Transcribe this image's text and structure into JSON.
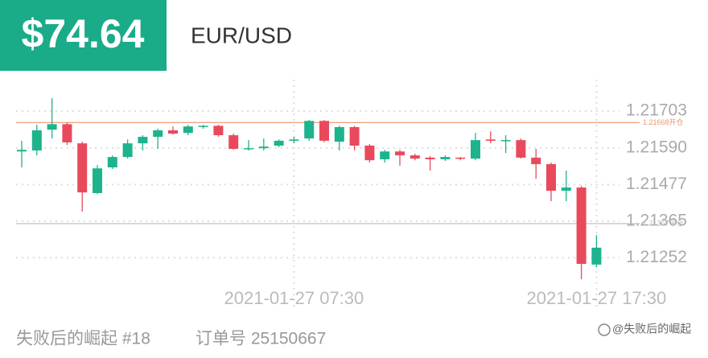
{
  "header": {
    "price": "$74.64",
    "pair": "EUR/USD"
  },
  "chart_data": {
    "type": "candlestick",
    "categories": [
      null,
      null,
      null,
      null,
      null,
      null,
      null,
      null,
      null,
      null,
      null,
      null,
      null,
      null,
      null,
      null,
      null,
      null,
      "2021-01-27 07:30",
      null,
      null,
      null,
      null,
      null,
      null,
      null,
      null,
      null,
      null,
      null,
      null,
      null,
      null,
      null,
      null,
      null,
      null,
      null,
      "2021-01-27 17:30"
    ],
    "open": [
      1.21579,
      1.21582,
      1.21646,
      1.21663,
      1.21604,
      1.21451,
      1.2153,
      1.21562,
      1.21604,
      1.21624,
      1.21644,
      1.21636,
      1.21656,
      1.21658,
      1.21629,
      1.21587,
      1.21589,
      1.21597,
      1.21612,
      1.21619,
      1.21673,
      1.21609,
      1.21654,
      1.21597,
      1.21555,
      1.21579,
      1.21567,
      1.2156,
      1.21555,
      1.2156,
      1.21557,
      1.21616,
      1.21612,
      1.21614,
      1.2156,
      1.2154,
      1.21458,
      1.21468,
      1.21231
    ],
    "high": [
      1.21612,
      1.21661,
      1.21743,
      1.21668,
      1.21609,
      1.21537,
      1.21567,
      1.21616,
      1.21629,
      1.21649,
      1.21656,
      1.21661,
      1.21661,
      1.21661,
      1.21634,
      1.21614,
      1.21619,
      1.21616,
      1.21624,
      1.21676,
      1.21676,
      1.21658,
      1.21658,
      1.21602,
      1.21584,
      1.21584,
      1.21572,
      1.21565,
      1.21567,
      1.21562,
      1.21636,
      1.21641,
      1.21629,
      1.21619,
      1.21587,
      1.21545,
      1.2152,
      1.21473,
      1.21322
    ],
    "low": [
      1.2153,
      1.21567,
      1.21619,
      1.21599,
      1.21394,
      1.21448,
      1.21525,
      1.21557,
      1.21582,
      1.21587,
      1.21631,
      1.21629,
      1.21649,
      1.21624,
      1.21584,
      1.21582,
      1.21582,
      1.21592,
      1.21604,
      1.21612,
      1.21607,
      1.21582,
      1.21582,
      1.21545,
      1.21545,
      1.21535,
      1.21552,
      1.2152,
      1.2155,
      1.21552,
      1.21552,
      1.21604,
      1.21574,
      1.21557,
      1.21495,
      1.21426,
      1.21426,
      1.21186,
      1.21223
    ],
    "close": [
      1.21584,
      1.21644,
      1.21663,
      1.21607,
      1.21453,
      1.21527,
      1.21562,
      1.21604,
      1.21624,
      1.21644,
      1.21634,
      1.21656,
      1.21658,
      1.21629,
      1.21587,
      1.21589,
      1.21594,
      1.21612,
      1.21616,
      1.21673,
      1.21612,
      1.21654,
      1.21597,
      1.21552,
      1.21579,
      1.21567,
      1.21557,
      1.21555,
      1.21562,
      1.21557,
      1.21614,
      1.21612,
      1.21614,
      1.2156,
      1.2154,
      1.21458,
      1.21468,
      1.21233,
      1.21283
    ],
    "up_color": "#1db38d",
    "down_color": "#e84a5c",
    "ylim": [
      1.2117,
      1.218
    ],
    "yticks": [
      1.21703,
      {
        "value": 1.2159,
        "label": "1.21590"
      },
      1.21477,
      1.21365,
      1.21252
    ],
    "grid": true,
    "reference_lines": [
      {
        "value": 1.21668,
        "name": "开仓",
        "color": "#f0946a"
      },
      {
        "value": 1.21357,
        "name": "平仓",
        "color": "#bbbbbb"
      }
    ]
  },
  "footer": {
    "account": "失败后的崛起 #18",
    "order": "订单号 25150667",
    "watermark": "@失败后的崛起"
  }
}
